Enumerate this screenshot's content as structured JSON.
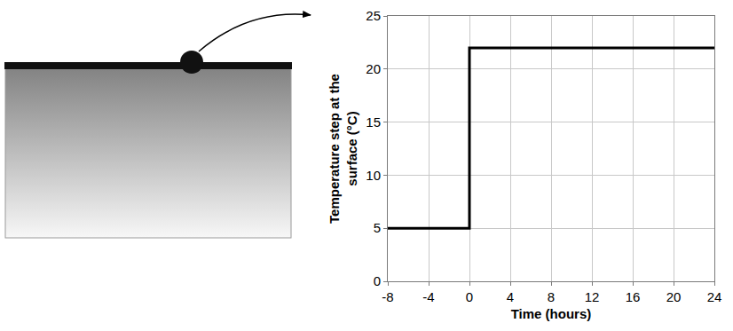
{
  "chart_data": {
    "type": "line",
    "x": [
      -8,
      0,
      0,
      24
    ],
    "values": [
      5,
      5,
      22,
      22
    ],
    "color": "#000000",
    "line_style": "solid",
    "xlabel": "Time (hours)",
    "ylabel": "Temperature step at the surface (°C)",
    "xlim": [
      -8,
      24
    ],
    "xticks": [
      -8,
      -4,
      0,
      4,
      8,
      12,
      16,
      20,
      24
    ],
    "ylim": [
      0,
      25
    ],
    "yticks": [
      0,
      5,
      10,
      15,
      20,
      25
    ],
    "grid": true
  }
}
